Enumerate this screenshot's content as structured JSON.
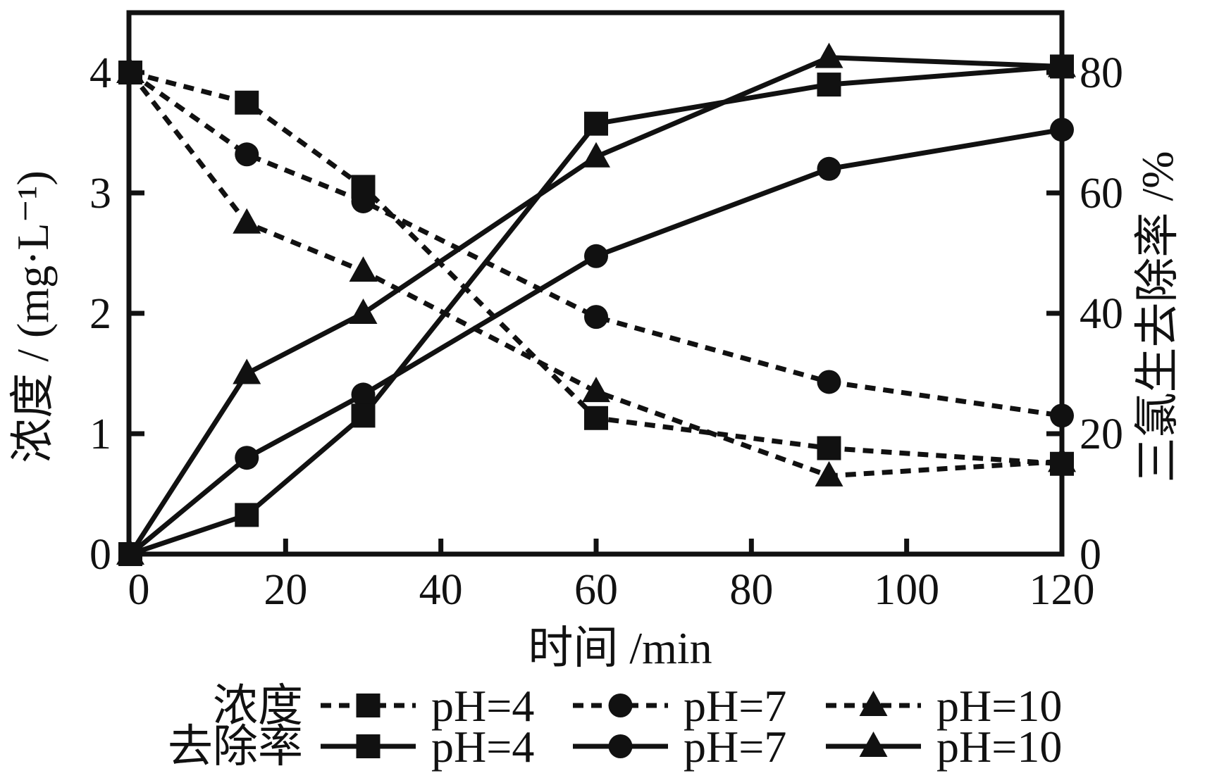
{
  "figure": {
    "background": "#ffffff",
    "ink_color": "#111111"
  },
  "chart_data": {
    "type": "line",
    "title": "",
    "xlabel": "时间 /min",
    "x": [
      0,
      15,
      30,
      60,
      90,
      120
    ],
    "x_ticks": [
      0,
      20,
      40,
      60,
      80,
      100,
      120
    ],
    "xlim": [
      0,
      120
    ],
    "left_axis": {
      "label": "浓度 / (mg·L⁻¹)",
      "ticks": [
        0,
        1,
        2,
        3,
        4
      ],
      "lim": [
        0,
        4
      ]
    },
    "right_axis": {
      "label": "三氯生去除率 /%",
      "ticks": [
        0,
        20,
        40,
        60,
        80
      ],
      "lim": [
        0,
        80
      ]
    },
    "grid": "off",
    "legend_position": "bottom",
    "series": [
      {
        "key": "concentration-ph4",
        "group": "浓度",
        "name": "pH=4",
        "axis": "left",
        "style": "dashed",
        "marker": "square",
        "values": [
          4.0,
          3.75,
          3.05,
          1.13,
          0.88,
          0.75
        ]
      },
      {
        "key": "concentration-ph7",
        "group": "浓度",
        "name": "pH=7",
        "axis": "left",
        "style": "dashed",
        "marker": "circle",
        "values": [
          4.0,
          3.32,
          2.93,
          1.97,
          1.43,
          1.15
        ]
      },
      {
        "key": "concentration-ph10",
        "group": "浓度",
        "name": "pH=10",
        "axis": "left",
        "style": "dashed",
        "marker": "triangle",
        "values": [
          4.0,
          2.75,
          2.35,
          1.35,
          0.65,
          0.77
        ]
      },
      {
        "key": "removal-ph4",
        "group": "去除率",
        "name": "pH=4",
        "axis": "right",
        "style": "solid",
        "marker": "square",
        "values": [
          0,
          6.5,
          23,
          71.5,
          78,
          81
        ]
      },
      {
        "key": "removal-ph7",
        "group": "去除率",
        "name": "pH=7",
        "axis": "right",
        "style": "solid",
        "marker": "circle",
        "values": [
          0,
          16,
          26.5,
          49.5,
          64,
          70.5
        ]
      },
      {
        "key": "removal-ph10",
        "group": "去除率",
        "name": "pH=10",
        "axis": "right",
        "style": "solid",
        "marker": "triangle",
        "values": [
          0,
          30,
          40,
          66,
          82.5,
          81
        ]
      }
    ],
    "legend": {
      "rows": [
        {
          "key": "concentration",
          "label": "浓度",
          "style": "dashed",
          "items": [
            {
              "key": "ph4",
              "marker": "square",
              "label": "pH=4"
            },
            {
              "key": "ph7",
              "marker": "circle",
              "label": "pH=7"
            },
            {
              "key": "ph10",
              "marker": "triangle",
              "label": "pH=10"
            }
          ]
        },
        {
          "key": "removal",
          "label": "去除率",
          "style": "solid",
          "items": [
            {
              "key": "ph4",
              "marker": "square",
              "label": "pH=4"
            },
            {
              "key": "ph7",
              "marker": "circle",
              "label": "pH=7"
            },
            {
              "key": "ph10",
              "marker": "triangle",
              "label": "pH=10"
            }
          ]
        }
      ]
    }
  }
}
